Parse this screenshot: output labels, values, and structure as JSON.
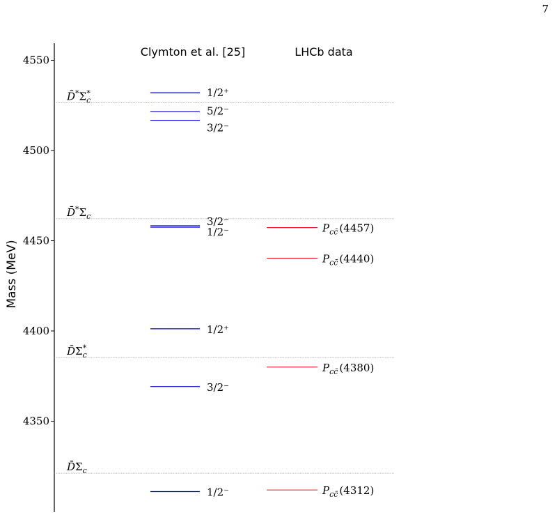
{
  "page": {
    "number": "7"
  },
  "chart_data": {
    "type": "level-diagram",
    "ylabel": "Mass (MeV)",
    "ylim": [
      4304,
      4557
    ],
    "yticks": [
      4350,
      4400,
      4450,
      4500,
      4550
    ],
    "columns": [
      {
        "key": "theory",
        "label": "Clymton et al. [25]"
      },
      {
        "key": "lhcb",
        "label": "LHCb data"
      }
    ],
    "thresholds": [
      {
        "label": "D̄*Σc*",
        "mass": 4526.5
      },
      {
        "label": "D̄*Σc",
        "mass": 4462.2
      },
      {
        "label": "D̄Σc*",
        "mass": 4385.3
      },
      {
        "label": "D̄Σc",
        "mass": 4321.2
      }
    ],
    "series": [
      {
        "name": "Clymton et al. [25]",
        "color": "#0000cc",
        "levels": [
          {
            "mass": 4532.0,
            "label": "1/2⁺"
          },
          {
            "mass": 4521.5,
            "label": "5/2⁻"
          },
          {
            "mass": 4516.7,
            "label": "3/2⁻"
          },
          {
            "mass": 4458.3,
            "label": "3/2⁻"
          },
          {
            "mass": 4457.5,
            "label": "1/2⁻"
          },
          {
            "mass": 4401.2,
            "label": "1/2⁺"
          },
          {
            "mass": 4369.2,
            "label": "3/2⁻"
          },
          {
            "mass": 4311.0,
            "label": "1/2⁻"
          }
        ]
      },
      {
        "name": "LHCb data",
        "color": "#e8202a",
        "levels": [
          {
            "mass": 4457.3,
            "state": "P",
            "sub": "cc̄",
            "value": "(4457)"
          },
          {
            "mass": 4440.3,
            "state": "P",
            "sub": "cc̄",
            "value": "(4440)"
          },
          {
            "mass": 4380.0,
            "state": "P",
            "sub": "cc̄",
            "value": "(4380)"
          },
          {
            "mass": 4311.9,
            "state": "P",
            "sub": "cc̄",
            "value": "(4312)"
          }
        ]
      }
    ],
    "colors": {
      "axis": "#000000",
      "threshold_line": "#999999"
    }
  }
}
